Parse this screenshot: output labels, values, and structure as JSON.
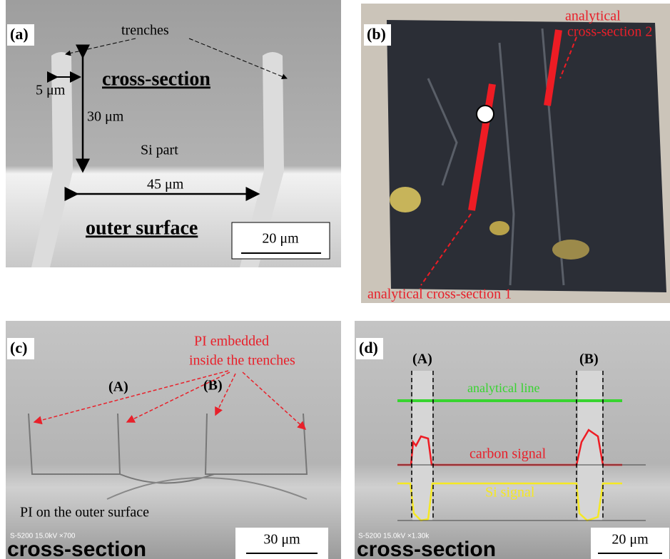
{
  "panels": [
    {
      "label": "(a)",
      "trenches": "trenches",
      "width": "5 μm",
      "cross_section": "cross-section",
      "depth": "30 μm",
      "region": "Si part",
      "spacing": "45 μm",
      "outer": "outer surface",
      "scale": "20 μm"
    },
    {
      "label": "(b)",
      "line2_a": "analytical",
      "line2_b": "cross-section 2",
      "line1": "analytical cross-section 1"
    },
    {
      "label": "(c)",
      "note_a": "PI embedded",
      "note_b": "inside the trenches",
      "trench_a": "(A)",
      "trench_b": "(B)",
      "outer": "PI on the outer surface",
      "instrument": "S-5200 15.0kV ×700",
      "scale": "30 μm",
      "cross_section": "cross-section"
    },
    {
      "label": "(d)",
      "trench_a": "(A)",
      "trench_b": "(B)",
      "line": "analytical line",
      "carbon": "carbon signal",
      "si": "Si signal",
      "instrument": "S-5200 15.0kV ×1.30k",
      "scale": "20 μm",
      "cross_section": "cross-section"
    }
  ]
}
